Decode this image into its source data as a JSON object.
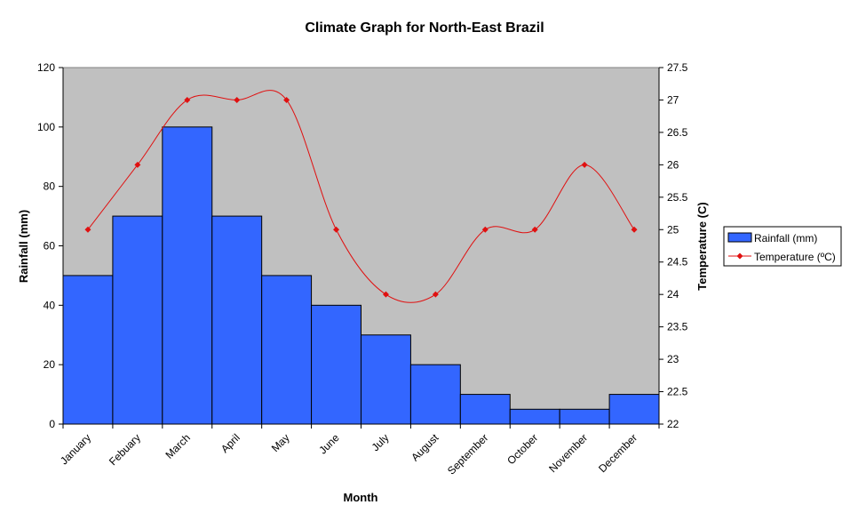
{
  "chart_data": {
    "type": "bar",
    "title": "Climate Graph for North-East Brazil",
    "xlabel": "Month",
    "ylabel": "Rainfall (mm)",
    "y2label": "Temperature (C)",
    "categories": [
      "January",
      "Febuary",
      "March",
      "April",
      "May",
      "June",
      "July",
      "August",
      "September",
      "October",
      "November",
      "December"
    ],
    "series": [
      {
        "name": "Rainfall (mm)",
        "type": "bar",
        "axis": "left",
        "color": "#3366ff",
        "values": [
          50,
          70,
          100,
          70,
          50,
          40,
          30,
          20,
          10,
          5,
          5,
          10
        ]
      },
      {
        "name": "Temperature (ºC)",
        "type": "line",
        "axis": "right",
        "color": "#e01010",
        "smooth": true,
        "marker": "diamond",
        "values": [
          25,
          26,
          27,
          27,
          27,
          25,
          24,
          24,
          25,
          25,
          26,
          25
        ]
      }
    ],
    "ylim": [
      0,
      120
    ],
    "yticks": [
      "0",
      "20",
      "40",
      "60",
      "80",
      "100",
      "120"
    ],
    "y2lim": [
      22,
      27.5
    ],
    "y2ticks": [
      "22",
      "22.5",
      "23",
      "23.5",
      "24",
      "24.5",
      "25",
      "25.5",
      "26",
      "26.5",
      "27",
      "27.5"
    ],
    "plot_background": "#c0c0c0",
    "grid": false,
    "legend_position": "right"
  }
}
